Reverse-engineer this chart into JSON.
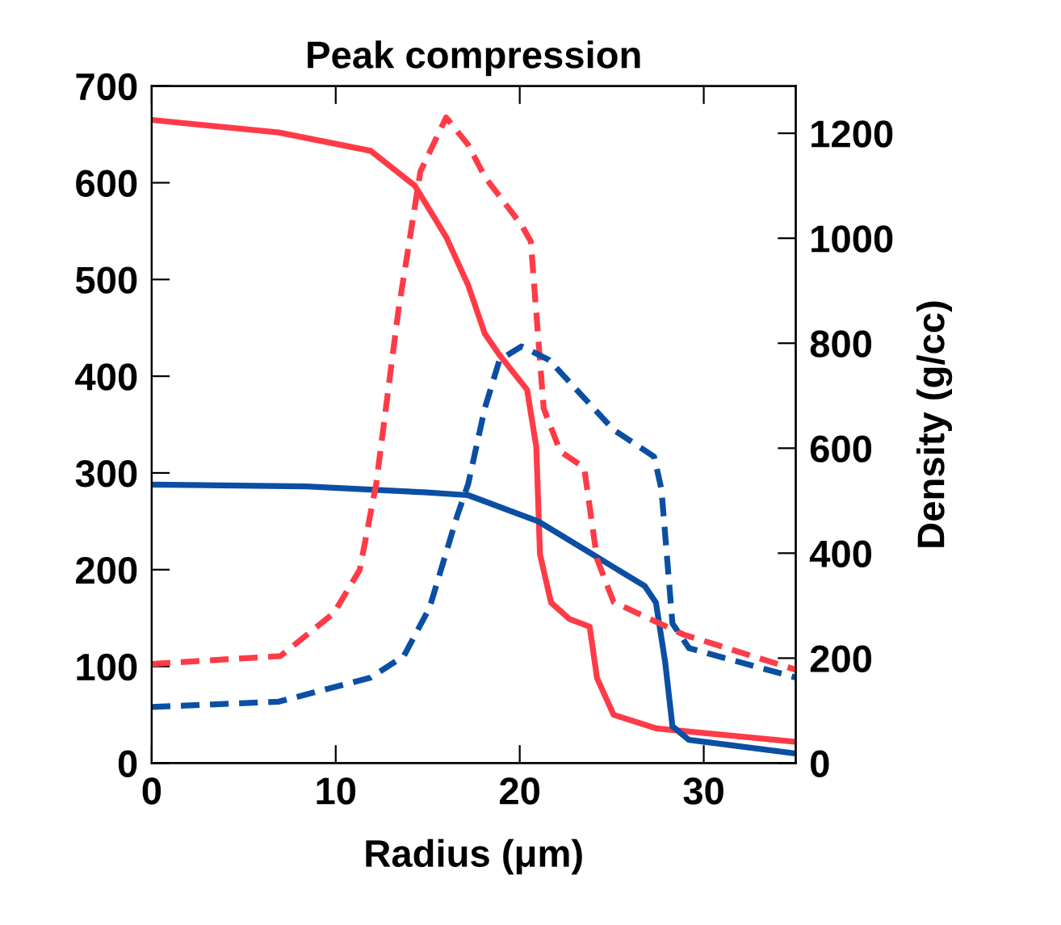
{
  "chart_data": {
    "type": "line",
    "title": "Peak compression",
    "xlabel": "Radius (μm)",
    "y2label": "Density (g/cc)",
    "xlim": [
      0,
      35
    ],
    "xticks": [
      0,
      10,
      20,
      30
    ],
    "ylim": [
      0,
      700
    ],
    "yticks": [
      0,
      100,
      200,
      300,
      400,
      500,
      600,
      700
    ],
    "y2lim": [
      0,
      1290
    ],
    "y2ticks": [
      0,
      200,
      400,
      600,
      800,
      1000,
      1200
    ],
    "grid": false,
    "legend": false,
    "series": [
      {
        "color": "#ff3b47",
        "line_style": "solid",
        "x": [
          0,
          6.9,
          11.9,
          14.3,
          16.0,
          17.2,
          18.1,
          18.9,
          20.4,
          20.9,
          21.1,
          21.7,
          22.7,
          23.8,
          24.2,
          25.1,
          27.4,
          35
        ],
        "values": [
          665,
          652,
          633,
          597,
          544,
          494,
          444,
          422,
          386,
          327,
          216,
          166,
          149,
          141,
          88,
          50,
          36,
          22
        ]
      },
      {
        "color": "#0a4fa3",
        "line_style": "solid",
        "x": [
          0,
          8.4,
          14.8,
          17.2,
          21.0,
          24.2,
          26.8,
          27.4,
          27.9,
          28.3,
          29.2,
          35
        ],
        "values": [
          288,
          286,
          280,
          277,
          250,
          213,
          183,
          166,
          105,
          38,
          24,
          10
        ]
      },
      {
        "color": "#ff3b47",
        "line_style": "dashed",
        "axis": "y2",
        "x": [
          0,
          7.0,
          9.9,
          11.3,
          12.2,
          13.4,
          14.6,
          16.0,
          17.2,
          18.1,
          20.1,
          20.6,
          21.3,
          22.2,
          23.5,
          24.2,
          25.1,
          28.9,
          35
        ],
        "values": [
          189,
          204,
          286,
          368,
          532,
          861,
          1127,
          1230,
          1178,
          1117,
          1025,
          994,
          676,
          594,
          563,
          389,
          307,
          245,
          178
        ]
      },
      {
        "color": "#0a4fa3",
        "line_style": "dashed",
        "axis": "y2",
        "x": [
          0,
          6.9,
          11.9,
          13.7,
          15.1,
          16.6,
          17.2,
          18.1,
          18.9,
          20.1,
          21.6,
          25.1,
          27.3,
          27.7,
          28.3,
          29.2,
          35
        ],
        "values": [
          107,
          117,
          163,
          204,
          296,
          471,
          532,
          676,
          768,
          794,
          768,
          635,
          584,
          522,
          266,
          219,
          163
        ]
      }
    ]
  }
}
